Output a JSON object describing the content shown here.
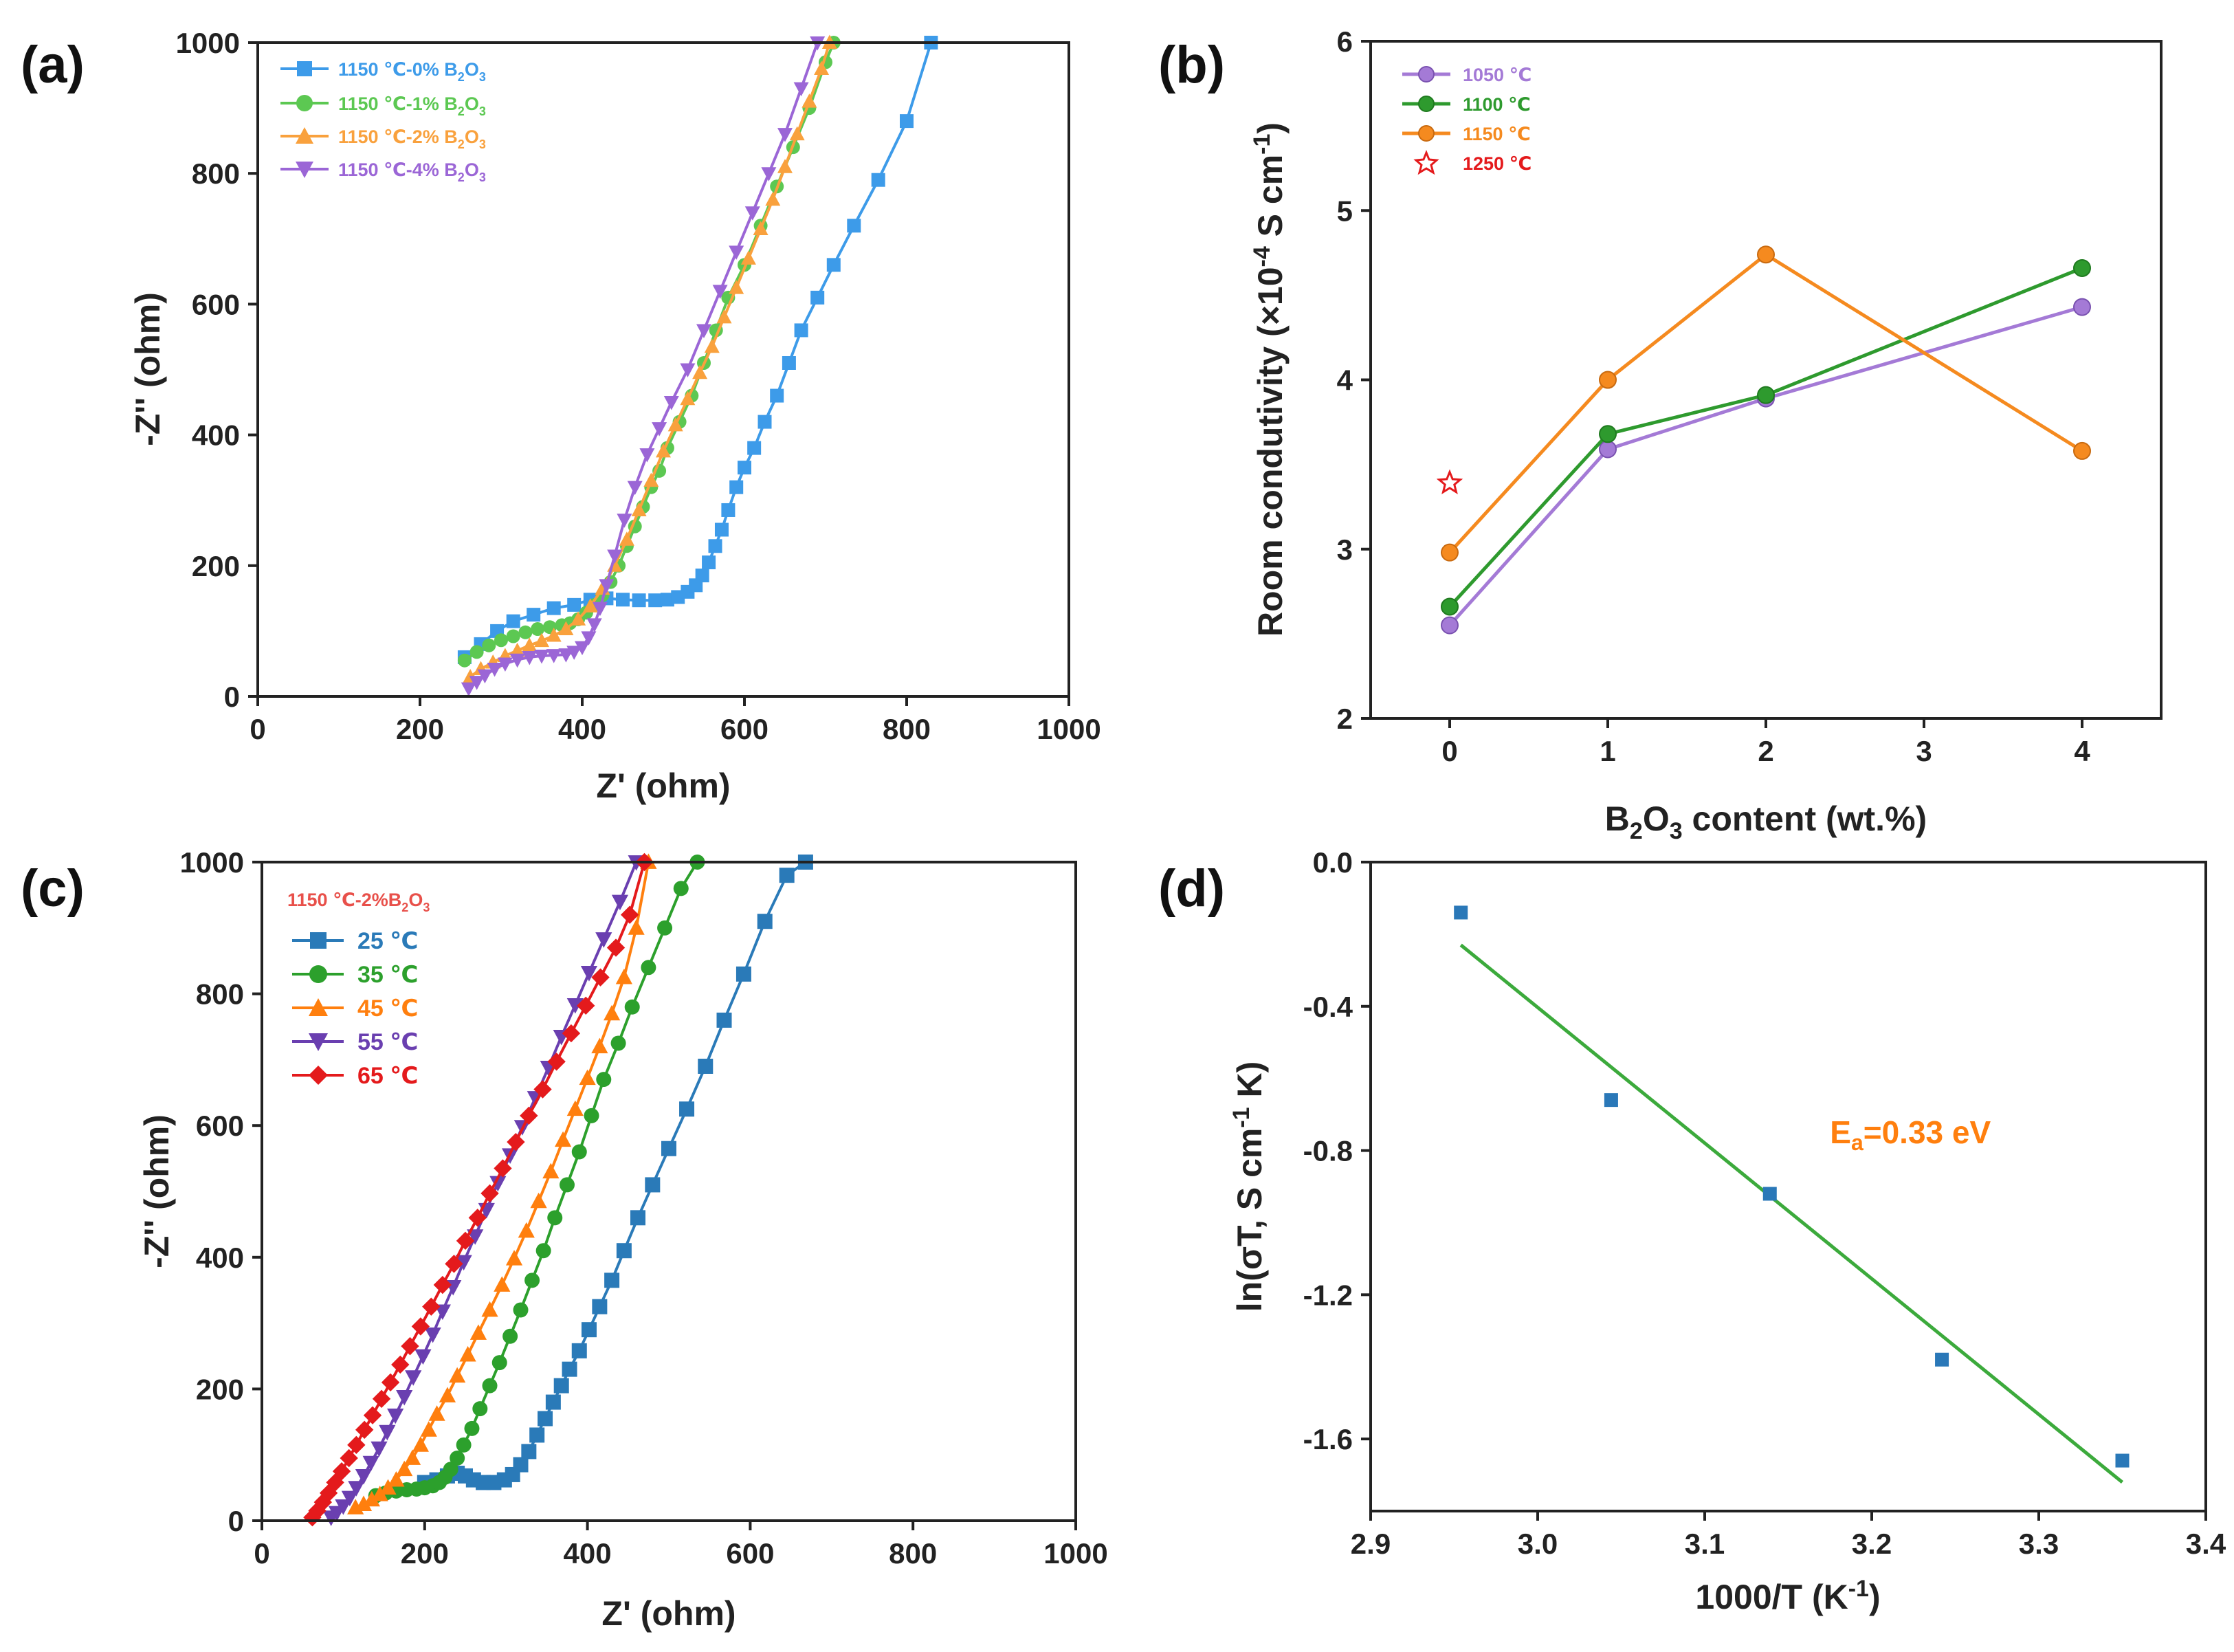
{
  "colors": {
    "blue": "#3d9be9",
    "green": "#5cc852",
    "orange": "#f9a13d",
    "purple": "#9b66d6",
    "b_purple": "#a47ad6",
    "b_green": "#2e9a2e",
    "b_orange": "#f58a1f",
    "red_star": "#e41a1c",
    "c_blue": "#2a7ab8",
    "c_green": "#2ca02c",
    "c_orange": "#ff7f0e",
    "c_purple": "#6a3fb0",
    "c_red": "#e41a1c",
    "d_point": "#2a78b8",
    "d_line": "#3caa3c",
    "d_annot": "#ff7f0e",
    "c_subtitle": "#e8504a"
  },
  "chart_data": [
    {
      "id": "a",
      "panel_label": "(a)",
      "type": "scatter",
      "xlabel": "Z' (ohm)",
      "ylabel": "-Z'' (ohm)",
      "xlim": [
        0,
        1000
      ],
      "ylim": [
        0,
        1000
      ],
      "xticks": [
        0,
        200,
        400,
        600,
        800,
        1000
      ],
      "yticks": [
        0,
        200,
        400,
        600,
        800,
        1000
      ],
      "xtick_labels": [
        "0",
        "200",
        "400",
        "600",
        "800",
        "1000"
      ],
      "ytick_labels": [
        "0",
        "200",
        "400",
        "600",
        "800",
        "1000"
      ],
      "legend_position": "top-left",
      "series": [
        {
          "name": "1150 ℃-0% B2O3",
          "legend_main": "1150 ℃-0% B",
          "legend_sub1": "2",
          "legend_mid": "O",
          "legend_sub2": "3",
          "color_key": "blue",
          "marker": "square",
          "x": [
            255,
            275,
            295,
            315,
            340,
            365,
            390,
            410,
            430,
            450,
            470,
            490,
            505,
            518,
            530,
            540,
            548,
            556,
            564,
            572,
            580,
            590,
            600,
            612,
            625,
            640,
            655,
            670,
            690,
            710,
            735,
            765,
            800,
            830
          ],
          "y": [
            60,
            80,
            100,
            115,
            125,
            135,
            140,
            148,
            150,
            148,
            147,
            147,
            148,
            152,
            160,
            170,
            185,
            205,
            230,
            255,
            285,
            320,
            350,
            380,
            420,
            460,
            510,
            560,
            610,
            660,
            720,
            790,
            880,
            1000
          ]
        },
        {
          "name": "1150 ℃-1% B2O3",
          "legend_main": "1150 ℃-1% B",
          "legend_sub1": "2",
          "legend_mid": "O",
          "legend_sub2": "3",
          "color_key": "green",
          "marker": "circle",
          "x": [
            255,
            270,
            285,
            300,
            315,
            330,
            345,
            360,
            375,
            385,
            395,
            405,
            415,
            425,
            435,
            445,
            455,
            465,
            475,
            485,
            495,
            505,
            520,
            535,
            550,
            565,
            580,
            600,
            620,
            640,
            660,
            680,
            700,
            710
          ],
          "y": [
            55,
            68,
            78,
            86,
            92,
            98,
            103,
            106,
            109,
            112,
            118,
            128,
            140,
            155,
            175,
            200,
            230,
            260,
            290,
            320,
            345,
            380,
            420,
            460,
            510,
            560,
            610,
            660,
            720,
            780,
            840,
            900,
            970,
            1000
          ]
        },
        {
          "name": "1150 ℃-2% B2O3",
          "legend_main": "1150 ℃-2% B",
          "legend_sub1": "2",
          "legend_mid": "O",
          "legend_sub2": "3",
          "color_key": "orange",
          "marker": "triangle-up",
          "x": [
            262,
            275,
            290,
            305,
            320,
            335,
            350,
            365,
            380,
            395,
            410,
            425,
            440,
            455,
            470,
            485,
            500,
            515,
            530,
            545,
            560,
            575,
            590,
            605,
            620,
            635,
            650,
            665,
            680,
            695,
            705
          ],
          "y": [
            30,
            42,
            52,
            62,
            70,
            78,
            85,
            93,
            103,
            118,
            138,
            165,
            200,
            240,
            285,
            330,
            375,
            415,
            455,
            495,
            535,
            580,
            625,
            670,
            715,
            760,
            810,
            860,
            910,
            960,
            1000
          ]
        },
        {
          "name": "1150 ℃-4% B2O3",
          "legend_main": "1150 ℃-4% B",
          "legend_sub1": "2",
          "legend_mid": "O",
          "legend_sub2": "3",
          "color_key": "purple",
          "marker": "triangle-down",
          "x": [
            260,
            270,
            280,
            292,
            305,
            320,
            335,
            350,
            365,
            380,
            390,
            400,
            408,
            415,
            422,
            430,
            440,
            452,
            465,
            480,
            495,
            510,
            530,
            550,
            570,
            590,
            610,
            630,
            650,
            670,
            690
          ],
          "y": [
            12,
            22,
            32,
            42,
            50,
            56,
            60,
            62,
            63,
            64,
            68,
            75,
            90,
            110,
            135,
            170,
            215,
            270,
            320,
            370,
            410,
            450,
            500,
            560,
            620,
            680,
            740,
            800,
            860,
            930,
            1000
          ]
        }
      ]
    },
    {
      "id": "b",
      "panel_label": "(b)",
      "type": "line",
      "xlabel_main": "B",
      "xlabel_sub": "2",
      "xlabel_mid": "O",
      "xlabel_sub2": "3",
      "xlabel_rest": " content (wt.%)",
      "ylabel_main": "Room condutivity (×10",
      "ylabel_sup": "-4",
      "ylabel_mid": " S cm",
      "ylabel_sup2": "-1",
      "ylabel_end": ")",
      "xlim": [
        -0.5,
        4.5
      ],
      "ylim": [
        2,
        6
      ],
      "xticks": [
        0,
        1,
        2,
        3,
        4
      ],
      "yticks": [
        2,
        3,
        4,
        5,
        6
      ],
      "xtick_labels": [
        "0",
        "1",
        "2",
        "3",
        "4"
      ],
      "ytick_labels": [
        "2",
        "3",
        "4",
        "5",
        "6"
      ],
      "legend_position": "top-left",
      "categories": [
        0,
        1,
        2,
        4
      ],
      "series": [
        {
          "name": "1050 ℃",
          "color_key": "b_purple",
          "marker": "circle",
          "x": [
            0,
            1,
            2,
            4
          ],
          "y": [
            2.55,
            3.59,
            3.89,
            4.43
          ]
        },
        {
          "name": "1100 ℃",
          "color_key": "b_green",
          "marker": "circle",
          "x": [
            0,
            1,
            2,
            4
          ],
          "y": [
            2.66,
            3.68,
            3.91,
            4.66
          ]
        },
        {
          "name": "1150 ℃",
          "color_key": "b_orange",
          "marker": "circle",
          "x": [
            0,
            1,
            2,
            4
          ],
          "y": [
            2.98,
            4.0,
            4.74,
            3.58
          ]
        },
        {
          "name": "1250 ℃",
          "color_key": "red_star",
          "marker": "star",
          "x": [
            0
          ],
          "y": [
            3.39
          ]
        }
      ]
    },
    {
      "id": "c",
      "panel_label": "(c)",
      "type": "line",
      "subtitle_main": "1150 ℃-2%B",
      "subtitle_sub1": "2",
      "subtitle_mid": "O",
      "subtitle_sub2": "3",
      "xlabel": "Z' (ohm)",
      "ylabel": "-Z'' (ohm)",
      "xlim": [
        0,
        1000
      ],
      "ylim": [
        0,
        1000
      ],
      "xticks": [
        0,
        200,
        400,
        600,
        800,
        1000
      ],
      "yticks": [
        0,
        200,
        400,
        600,
        800,
        1000
      ],
      "xtick_labels": [
        "0",
        "200",
        "400",
        "600",
        "800",
        "1000"
      ],
      "ytick_labels": [
        "0",
        "200",
        "400",
        "600",
        "800",
        "1000"
      ],
      "legend_position": "top-left",
      "series": [
        {
          "name": "25 ℃",
          "color_key": "c_blue",
          "marker": "square",
          "x": [
            200,
            215,
            228,
            240,
            250,
            260,
            272,
            285,
            298,
            308,
            318,
            328,
            338,
            348,
            358,
            368,
            378,
            390,
            402,
            415,
            430,
            445,
            462,
            480,
            500,
            522,
            545,
            568,
            592,
            618,
            645,
            668
          ],
          "y": [
            58,
            62,
            68,
            72,
            68,
            62,
            58,
            58,
            62,
            70,
            85,
            105,
            130,
            155,
            180,
            205,
            230,
            258,
            290,
            325,
            365,
            410,
            460,
            510,
            565,
            625,
            690,
            760,
            830,
            910,
            980,
            1000
          ]
        },
        {
          "name": "35 ℃",
          "color_key": "c_green",
          "marker": "circle",
          "x": [
            140,
            152,
            165,
            178,
            190,
            200,
            210,
            218,
            225,
            232,
            240,
            248,
            258,
            268,
            280,
            292,
            305,
            318,
            332,
            346,
            360,
            375,
            390,
            405,
            420,
            438,
            455,
            475,
            495,
            515,
            535
          ],
          "y": [
            38,
            42,
            45,
            47,
            48,
            50,
            53,
            58,
            66,
            78,
            95,
            115,
            140,
            170,
            205,
            240,
            280,
            320,
            365,
            410,
            460,
            510,
            560,
            615,
            670,
            725,
            780,
            840,
            900,
            960,
            1000
          ]
        },
        {
          "name": "45 ℃",
          "color_key": "c_orange",
          "marker": "triangle-up",
          "x": [
            115,
            125,
            135,
            145,
            155,
            165,
            175,
            185,
            195,
            205,
            215,
            228,
            240,
            253,
            266,
            280,
            295,
            310,
            325,
            340,
            355,
            370,
            385,
            400,
            415,
            430,
            445,
            460,
            475
          ],
          "y": [
            20,
            25,
            32,
            40,
            50,
            62,
            78,
            95,
            115,
            138,
            162,
            190,
            220,
            252,
            285,
            320,
            358,
            398,
            440,
            485,
            530,
            578,
            625,
            672,
            720,
            770,
            825,
            900,
            1000
          ]
        },
        {
          "name": "55 ℃",
          "color_key": "c_purple",
          "marker": "triangle-down",
          "x": [
            85,
            92,
            100,
            108,
            116,
            125,
            134,
            144,
            154,
            164,
            175,
            186,
            198,
            210,
            222,
            235,
            248,
            262,
            276,
            290,
            305,
            320,
            336,
            352,
            368,
            385,
            402,
            420,
            440,
            460
          ],
          "y": [
            5,
            12,
            22,
            35,
            50,
            68,
            88,
            110,
            135,
            160,
            188,
            218,
            250,
            283,
            318,
            355,
            393,
            432,
            472,
            513,
            555,
            598,
            642,
            688,
            735,
            783,
            832,
            883,
            940,
            1000
          ]
        },
        {
          "name": "65 ℃",
          "color_key": "c_red",
          "marker": "diamond",
          "x": [
            62,
            68,
            75,
            82,
            90,
            98,
            107,
            116,
            126,
            136,
            147,
            158,
            170,
            182,
            195,
            208,
            222,
            236,
            250,
            265,
            280,
            296,
            312,
            328,
            345,
            362,
            380,
            398,
            416,
            435,
            452,
            470
          ],
          "y": [
            5,
            15,
            28,
            42,
            58,
            75,
            95,
            115,
            138,
            160,
            185,
            210,
            237,
            265,
            295,
            325,
            358,
            390,
            425,
            460,
            497,
            535,
            575,
            615,
            655,
            697,
            740,
            782,
            825,
            870,
            920,
            1000
          ]
        }
      ]
    },
    {
      "id": "d",
      "panel_label": "(d)",
      "type": "scatter",
      "xlabel_main": "1000/T (K",
      "xlabel_sup": "-1",
      "xlabel_end": ")",
      "ylabel_main": "ln(σT, S cm",
      "ylabel_sup": "-1",
      "ylabel_end": " K)",
      "xlim": [
        2.9,
        3.4
      ],
      "ylim": [
        -1.8,
        0.0
      ],
      "xticks": [
        2.9,
        3.0,
        3.1,
        3.2,
        3.3,
        3.4
      ],
      "yticks": [
        0.0,
        -0.4,
        -0.8,
        -1.2,
        -1.6
      ],
      "xtick_labels": [
        "2.9",
        "3.0",
        "3.1",
        "3.2",
        "3.3",
        "3.4"
      ],
      "ytick_labels": [
        "0.0",
        "-0.4",
        "-0.8",
        "-1.2",
        "-1.6"
      ],
      "points": {
        "x": [
          2.954,
          3.044,
          3.139,
          3.242,
          3.35
        ],
        "y": [
          -0.14,
          -0.66,
          -0.92,
          -1.38,
          -1.66
        ]
      },
      "fit_line": {
        "x": [
          2.954,
          3.35
        ],
        "y": [
          -0.23,
          -1.72
        ]
      },
      "annotation_main": "E",
      "annotation_sub": "a",
      "annotation_rest": "=0.33 eV",
      "annotation_at": {
        "x": 3.175,
        "y": -0.78
      }
    }
  ]
}
